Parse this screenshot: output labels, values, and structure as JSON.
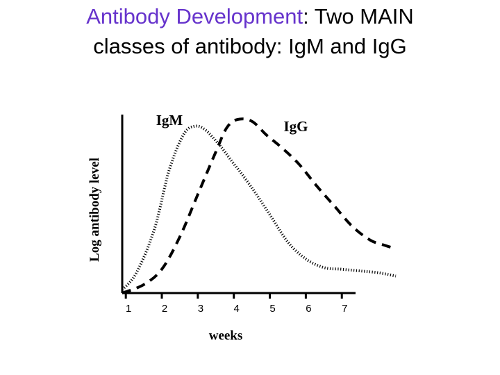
{
  "slide": {
    "title_accent": "Antibody Development",
    "title_rest_line1": ": Two MAIN",
    "title_line2": "classes of antibody: IgM and IgG",
    "accent_color": "#6633cc"
  },
  "chart_data": {
    "type": "line",
    "title": "",
    "xlabel": "weeks",
    "ylabel": "Log antibody level",
    "x_tick_labels": [
      "1",
      "2",
      "3",
      "4",
      "5",
      "6",
      "7"
    ],
    "xlim": [
      0.9,
      8.5
    ],
    "ylim": [
      0,
      1
    ],
    "grid": false,
    "series": [
      {
        "name": "IgM",
        "style": "dotted",
        "x": [
          0.9,
          1.3,
          1.8,
          2.2,
          2.6,
          2.9,
          3.2,
          3.6,
          4.0,
          4.5,
          5.0,
          5.5,
          6.0,
          6.5,
          7.0,
          7.5,
          8.0,
          8.5
        ],
        "y": [
          0.02,
          0.12,
          0.38,
          0.72,
          0.93,
          0.98,
          0.96,
          0.87,
          0.76,
          0.62,
          0.46,
          0.3,
          0.2,
          0.15,
          0.14,
          0.13,
          0.12,
          0.1
        ]
      },
      {
        "name": "IgG",
        "style": "dashed",
        "x": [
          0.9,
          1.5,
          2.0,
          2.5,
          3.0,
          3.5,
          3.8,
          4.1,
          4.5,
          4.9,
          5.3,
          5.8,
          6.3,
          6.8,
          7.3,
          7.8,
          8.2,
          8.5
        ],
        "y": [
          0.0,
          0.05,
          0.14,
          0.33,
          0.58,
          0.83,
          0.97,
          1.02,
          1.01,
          0.93,
          0.86,
          0.76,
          0.63,
          0.51,
          0.39,
          0.31,
          0.28,
          0.26
        ]
      }
    ]
  }
}
